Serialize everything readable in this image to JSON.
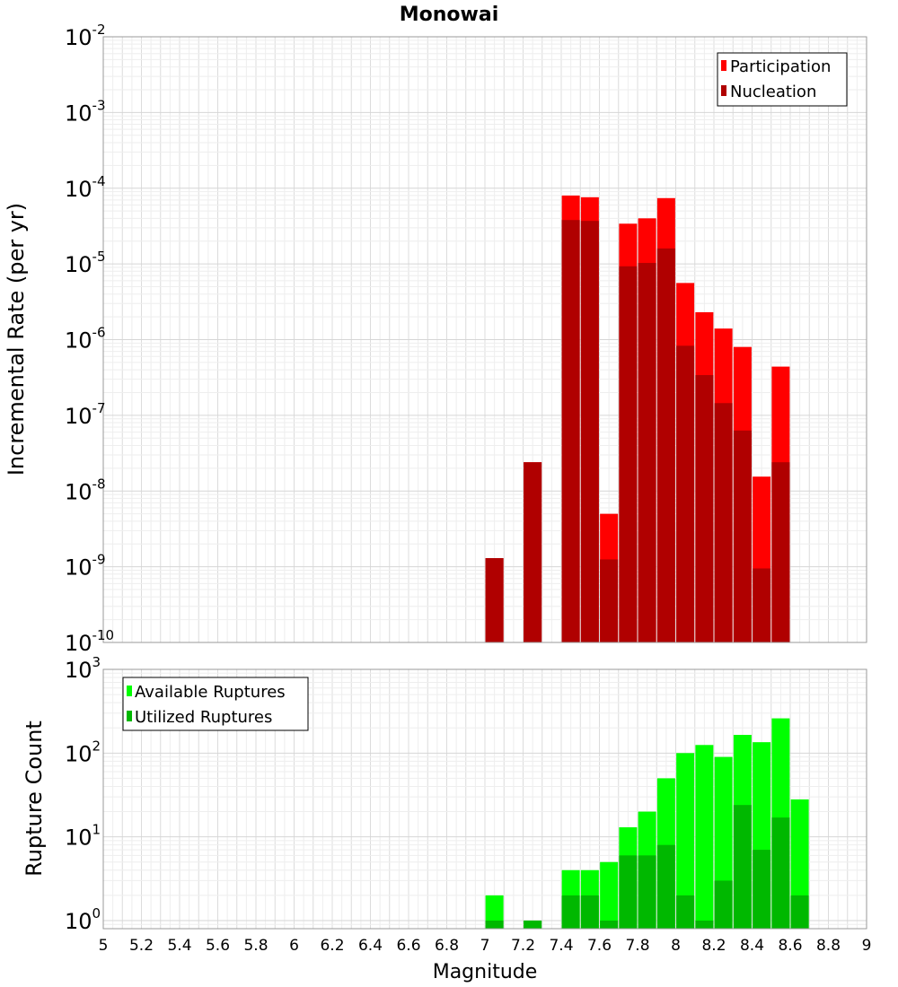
{
  "chart_data": [
    {
      "type": "bar",
      "title": "Monowai",
      "xlabel": "",
      "ylabel": "Incremental Rate (per yr)",
      "yscale": "log",
      "ylim": [
        1e-10,
        0.01
      ],
      "xlim": [
        5,
        9
      ],
      "grid": true,
      "legend_position": "top-right",
      "y_ticks": [
        {
          "base": "10",
          "exp": "-10"
        },
        {
          "base": "10",
          "exp": "-9"
        },
        {
          "base": "10",
          "exp": "-8"
        },
        {
          "base": "10",
          "exp": "-7"
        },
        {
          "base": "10",
          "exp": "-6"
        },
        {
          "base": "10",
          "exp": "-5"
        },
        {
          "base": "10",
          "exp": "-4"
        },
        {
          "base": "10",
          "exp": "-3"
        },
        {
          "base": "10",
          "exp": "-2"
        }
      ],
      "x": [
        7.05,
        7.25,
        7.45,
        7.55,
        7.65,
        7.75,
        7.85,
        7.95,
        8.05,
        8.15,
        8.25,
        8.35,
        8.45,
        8.55
      ],
      "series": [
        {
          "name": "Participation",
          "color": "#ff0000",
          "values": [
            1.3e-09,
            2.4e-08,
            8e-05,
            7.6e-05,
            5e-09,
            3.4e-05,
            4e-05,
            7.4e-05,
            5.6e-06,
            2.3e-06,
            1.4e-06,
            8e-07,
            1.55e-08,
            4.4e-07
          ]
        },
        {
          "name": "Nucleation",
          "color": "#b00000",
          "values": [
            1.3e-09,
            2.4e-08,
            3.8e-05,
            3.7e-05,
            1.25e-09,
            9.3e-06,
            1.03e-05,
            1.6e-05,
            8.3e-07,
            3.4e-07,
            1.45e-07,
            6.3e-08,
            9.5e-10,
            2.4e-08
          ]
        }
      ]
    },
    {
      "type": "bar",
      "xlabel": "Magnitude",
      "ylabel": "Rupture Count",
      "yscale": "log",
      "ylim": [
        0.8,
        1000
      ],
      "xlim": [
        5,
        9
      ],
      "grid": true,
      "legend_position": "top-left",
      "y_ticks": [
        {
          "base": "10",
          "exp": "0"
        },
        {
          "base": "10",
          "exp": "1"
        },
        {
          "base": "10",
          "exp": "2"
        },
        {
          "base": "10",
          "exp": "3"
        }
      ],
      "x_ticks": [
        "5",
        "5.2",
        "5.4",
        "5.6",
        "5.8",
        "6",
        "6.2",
        "6.4",
        "6.6",
        "6.8",
        "7",
        "7.2",
        "7.4",
        "7.6",
        "7.8",
        "8",
        "8.2",
        "8.4",
        "8.6",
        "8.8",
        "9"
      ],
      "x": [
        7.05,
        7.25,
        7.45,
        7.55,
        7.65,
        7.75,
        7.85,
        7.95,
        8.05,
        8.15,
        8.25,
        8.35,
        8.45,
        8.55,
        8.65
      ],
      "series": [
        {
          "name": "Available Ruptures",
          "color": "#00ff00",
          "values": [
            2,
            1,
            4,
            4,
            5,
            13,
            20,
            50,
            100,
            125,
            90,
            165,
            135,
            260,
            28
          ]
        },
        {
          "name": "Utilized Ruptures",
          "color": "#00b800",
          "values": [
            1,
            1,
            2,
            2,
            1,
            6,
            6,
            8,
            2,
            1,
            3,
            24,
            7,
            17,
            2
          ]
        }
      ]
    }
  ]
}
